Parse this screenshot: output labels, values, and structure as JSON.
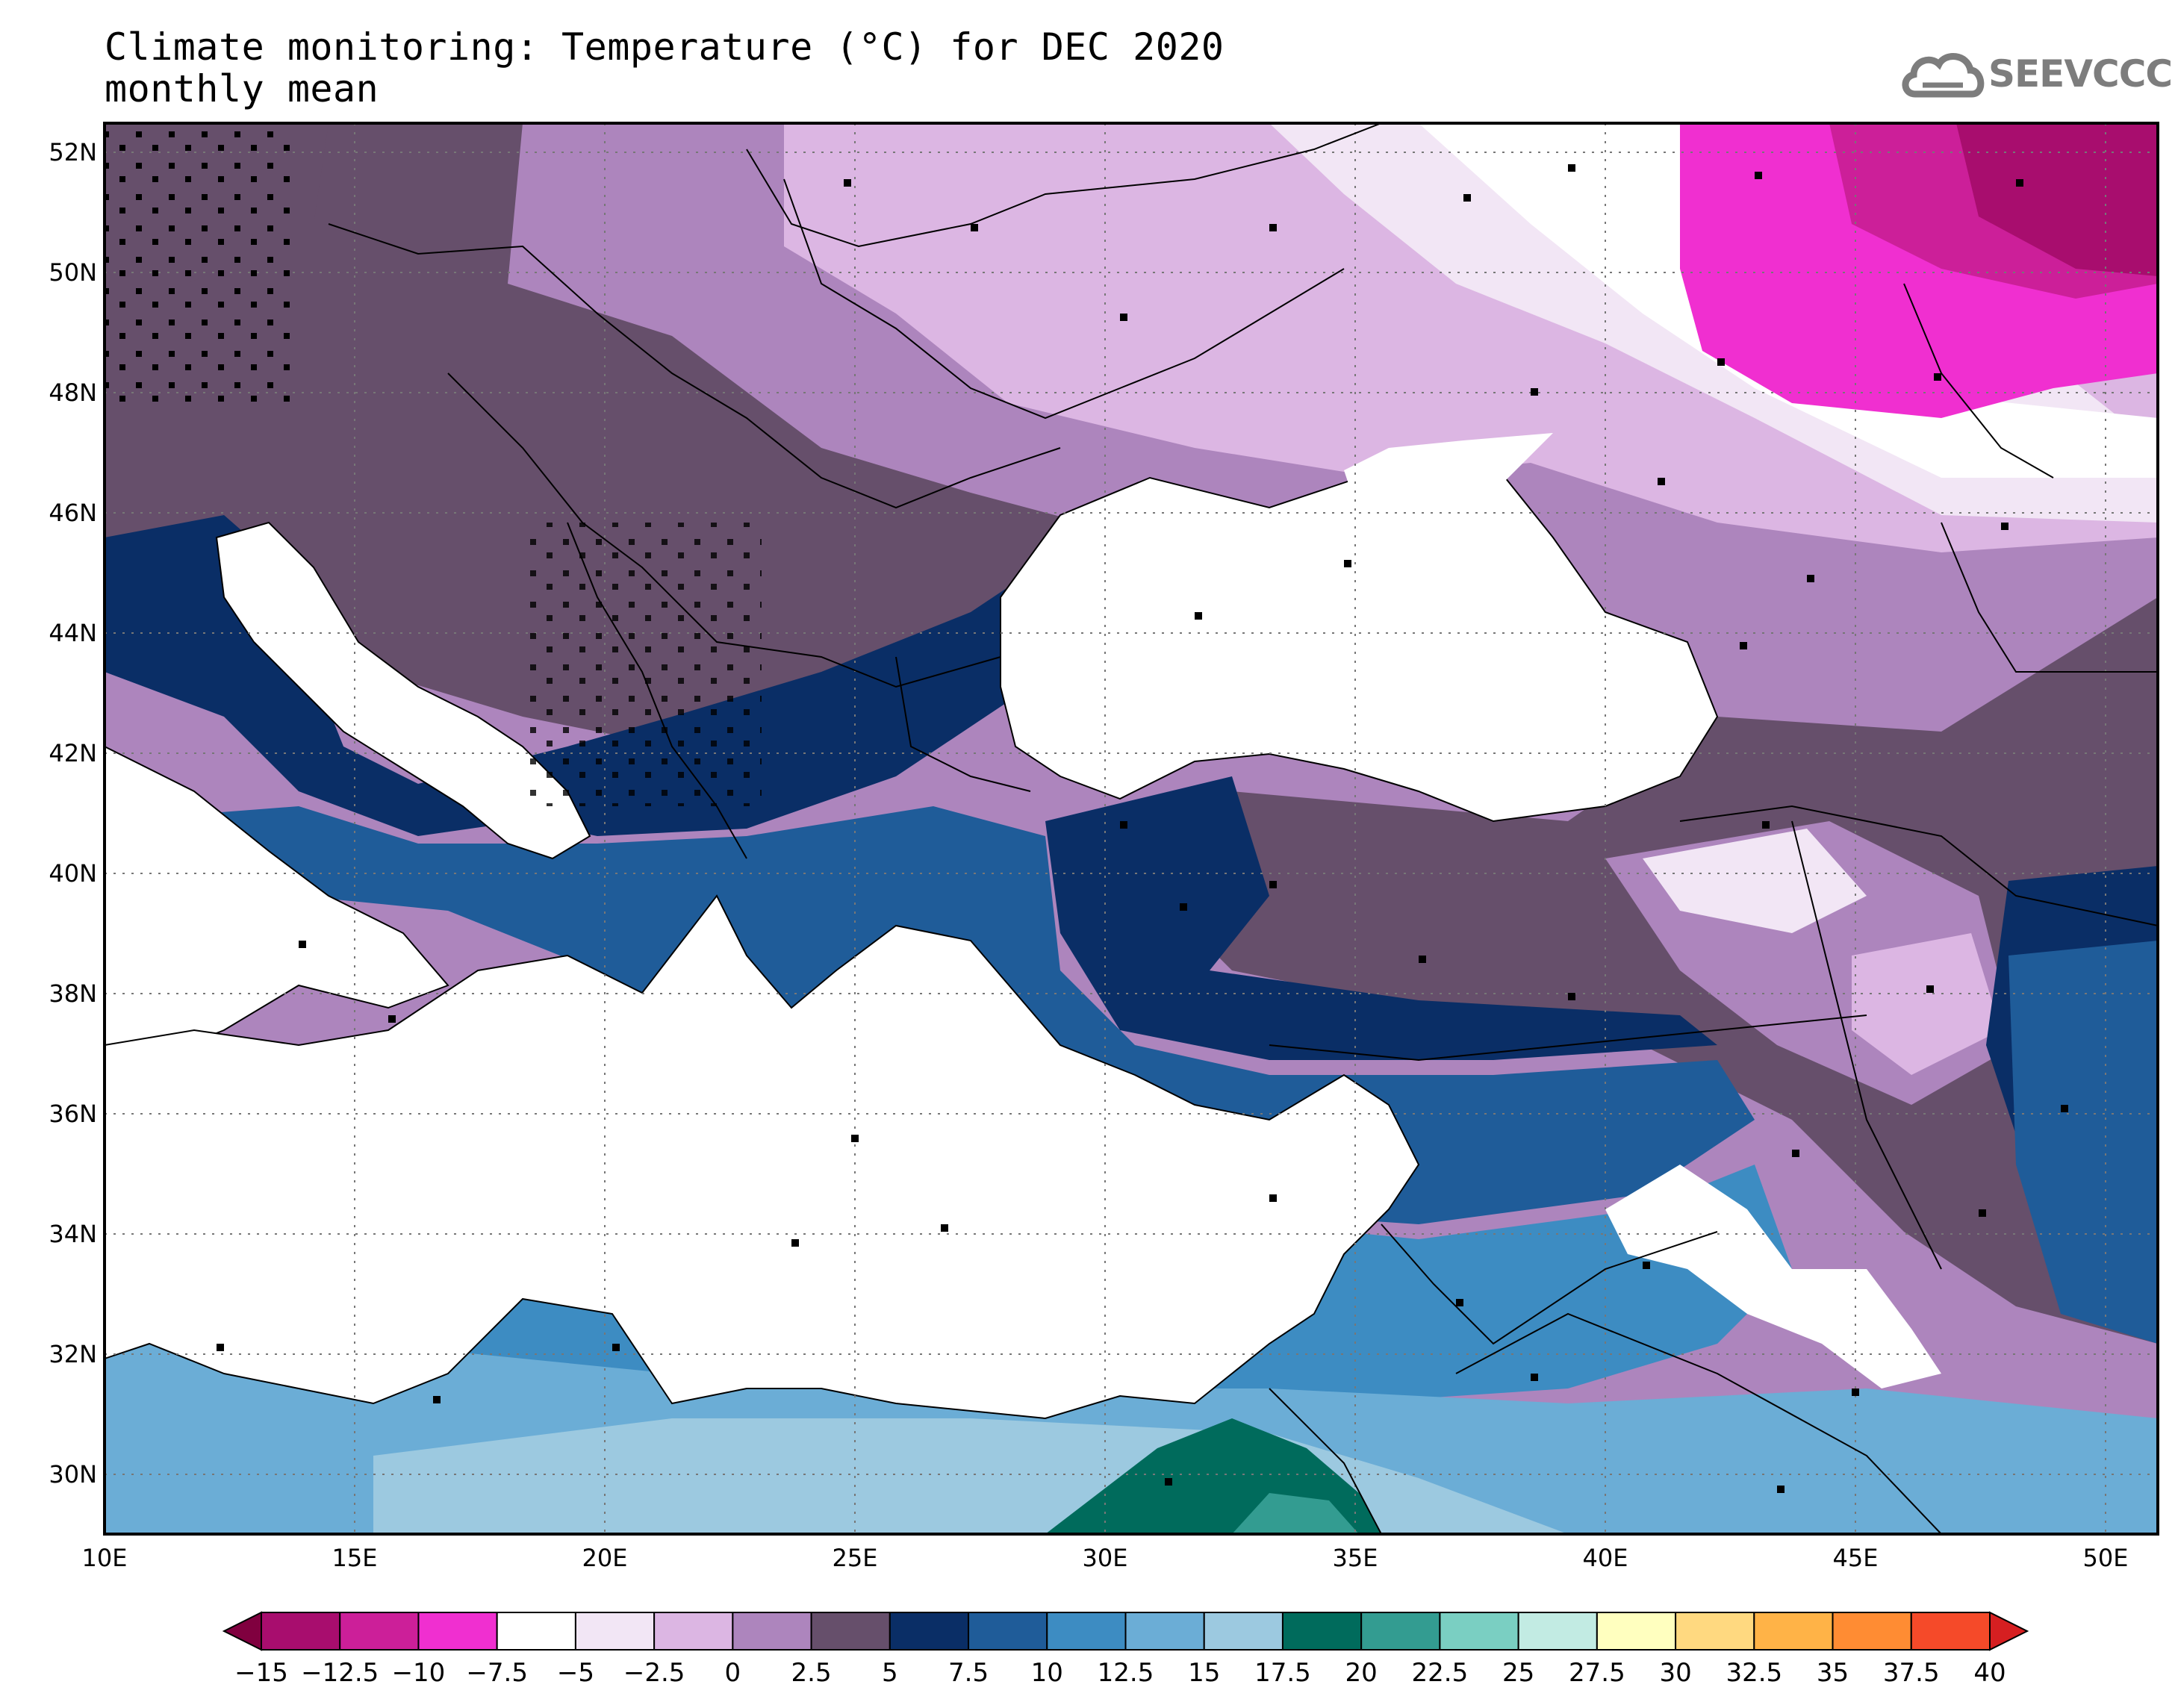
{
  "header": {
    "title_line_1": "Climate monitoring: Temperature (°C) for DEC 2020",
    "title_line_2": "monthly mean",
    "logo_text": "SEEVCCC"
  },
  "axes": {
    "lat_labels": [
      "52N",
      "50N",
      "48N",
      "46N",
      "44N",
      "42N",
      "40N",
      "38N",
      "36N",
      "34N",
      "32N",
      "30N"
    ],
    "lon_labels": [
      "10E",
      "15E",
      "20E",
      "25E",
      "30E",
      "35E",
      "40E",
      "45E",
      "50E"
    ]
  },
  "colorbar": {
    "labels": [
      "−15",
      "−12.5",
      "−10",
      "−7.5",
      "−5",
      "−2.5",
      "0",
      "2.5",
      "5",
      "7.5",
      "10",
      "12.5",
      "15",
      "17.5",
      "20",
      "22.5",
      "25",
      "27.5",
      "30",
      "32.5",
      "35",
      "37.5",
      "40"
    ],
    "colors": [
      "#80003f",
      "#a80d6e",
      "#cc1f99",
      "#f02fd0",
      "#ffffff",
      "#f2e6f5",
      "#dcb6e3",
      "#ad85bd",
      "#664f6b",
      "#0a2e66",
      "#1f5c99",
      "#3d8cc2",
      "#6badd6",
      "#9cc9e0",
      "#006b5c",
      "#339c91",
      "#7acfc2",
      "#c2ebe3",
      "#ffffbf",
      "#ffd980",
      "#ffb347",
      "#ff8c33",
      "#f54a29",
      "#d61f21"
    ]
  },
  "map": {
    "fills": {
      "sea": "#ffffff",
      "deep_purple": "#664f6b",
      "mid_purple": "#ad85bd",
      "light_purple": "#dcb6e3",
      "pale_purple": "#f2e6f5",
      "magenta": "#f02fd0",
      "dark_magenta": "#a80d6e",
      "navy": "#0a2e66",
      "blue_dark": "#1f5c99",
      "blue_mid": "#3d8cc2",
      "blue_light": "#6badd6",
      "blue_pale": "#9cc9e0",
      "teal_dark": "#006b5c",
      "teal_mid": "#339c91"
    }
  }
}
